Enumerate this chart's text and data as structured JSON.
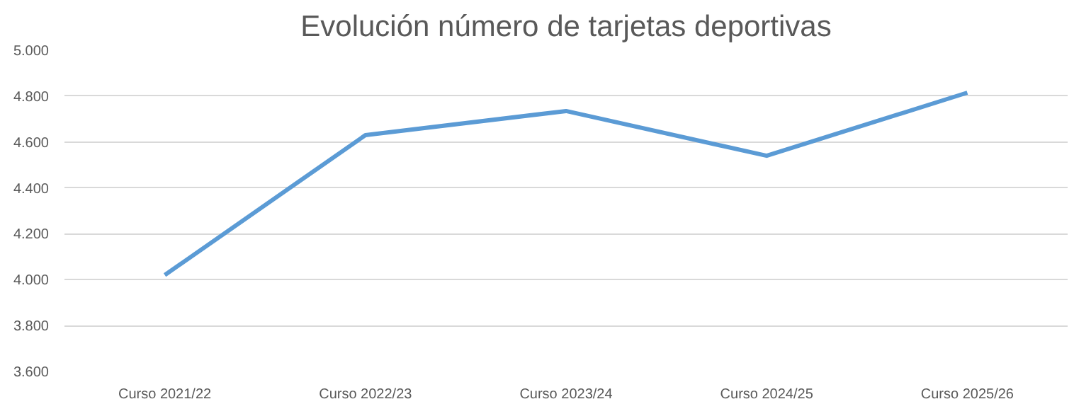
{
  "chart_data": {
    "type": "line",
    "title": "Evolución número de tarjetas deportivas",
    "categories": [
      "Curso 2021/22",
      "Curso 2022/23",
      "Curso 2023/24",
      "Curso 2024/25",
      "Curso 2025/26"
    ],
    "series": [
      {
        "color": "#5b9bd5",
        "values": [
          4020,
          4630,
          4735,
          4540,
          4815
        ]
      }
    ],
    "ylim": [
      3600,
      5000
    ],
    "yticks": [
      {
        "value": 3600,
        "label": "3.600"
      },
      {
        "value": 3800,
        "label": "3.800"
      },
      {
        "value": 4000,
        "label": "4.000"
      },
      {
        "value": 4200,
        "label": "4.200"
      },
      {
        "value": 4400,
        "label": "4.400"
      },
      {
        "value": 4600,
        "label": "4.600"
      },
      {
        "value": 4800,
        "label": "4.800"
      },
      {
        "value": 5000,
        "label": "5.000"
      }
    ],
    "grid": "y",
    "marker": "none",
    "line_style": "solid"
  }
}
